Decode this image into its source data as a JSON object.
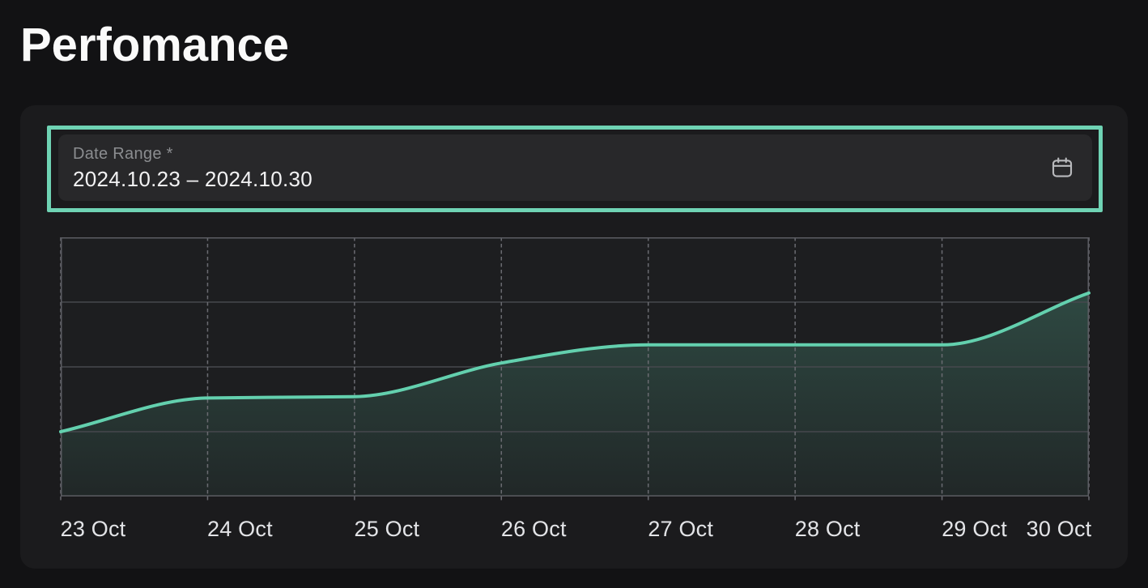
{
  "page": {
    "title": "Perfomance",
    "background": "#121214"
  },
  "card": {
    "background": "#1B1B1D"
  },
  "date_range_field": {
    "label": "Date Range *",
    "value": "2024.10.23 – 2024.10.30",
    "highlight_color": "#6FD3B4",
    "icon": "calendar-icon",
    "icon_color": "#B9BABD"
  },
  "chart_data": {
    "type": "area",
    "title": "",
    "xlabel": "",
    "ylabel": "",
    "x": [
      "23 Oct",
      "24 Oct",
      "25 Oct",
      "26 Oct",
      "27 Oct",
      "28 Oct",
      "29 Oct",
      "30 Oct"
    ],
    "values": [
      25,
      38,
      38.5,
      51.5,
      58.5,
      58.5,
      58.5,
      78.5
    ],
    "ylim": [
      0,
      100
    ],
    "y_axis_visible": false,
    "legend": "none",
    "grid": {
      "horizontal": "solid",
      "vertical": "dashed",
      "h_divisions": 4,
      "line_color": "#47484D",
      "dash_color": "#6A6B71",
      "border_color": "#5B5C62"
    },
    "line_color": "#63D0AE",
    "fill_gradient_top": "rgba(102,210,175,0.24)",
    "fill_gradient_bottom": "rgba(102,210,175,0.05)",
    "plot_background": "#1D1E20"
  }
}
